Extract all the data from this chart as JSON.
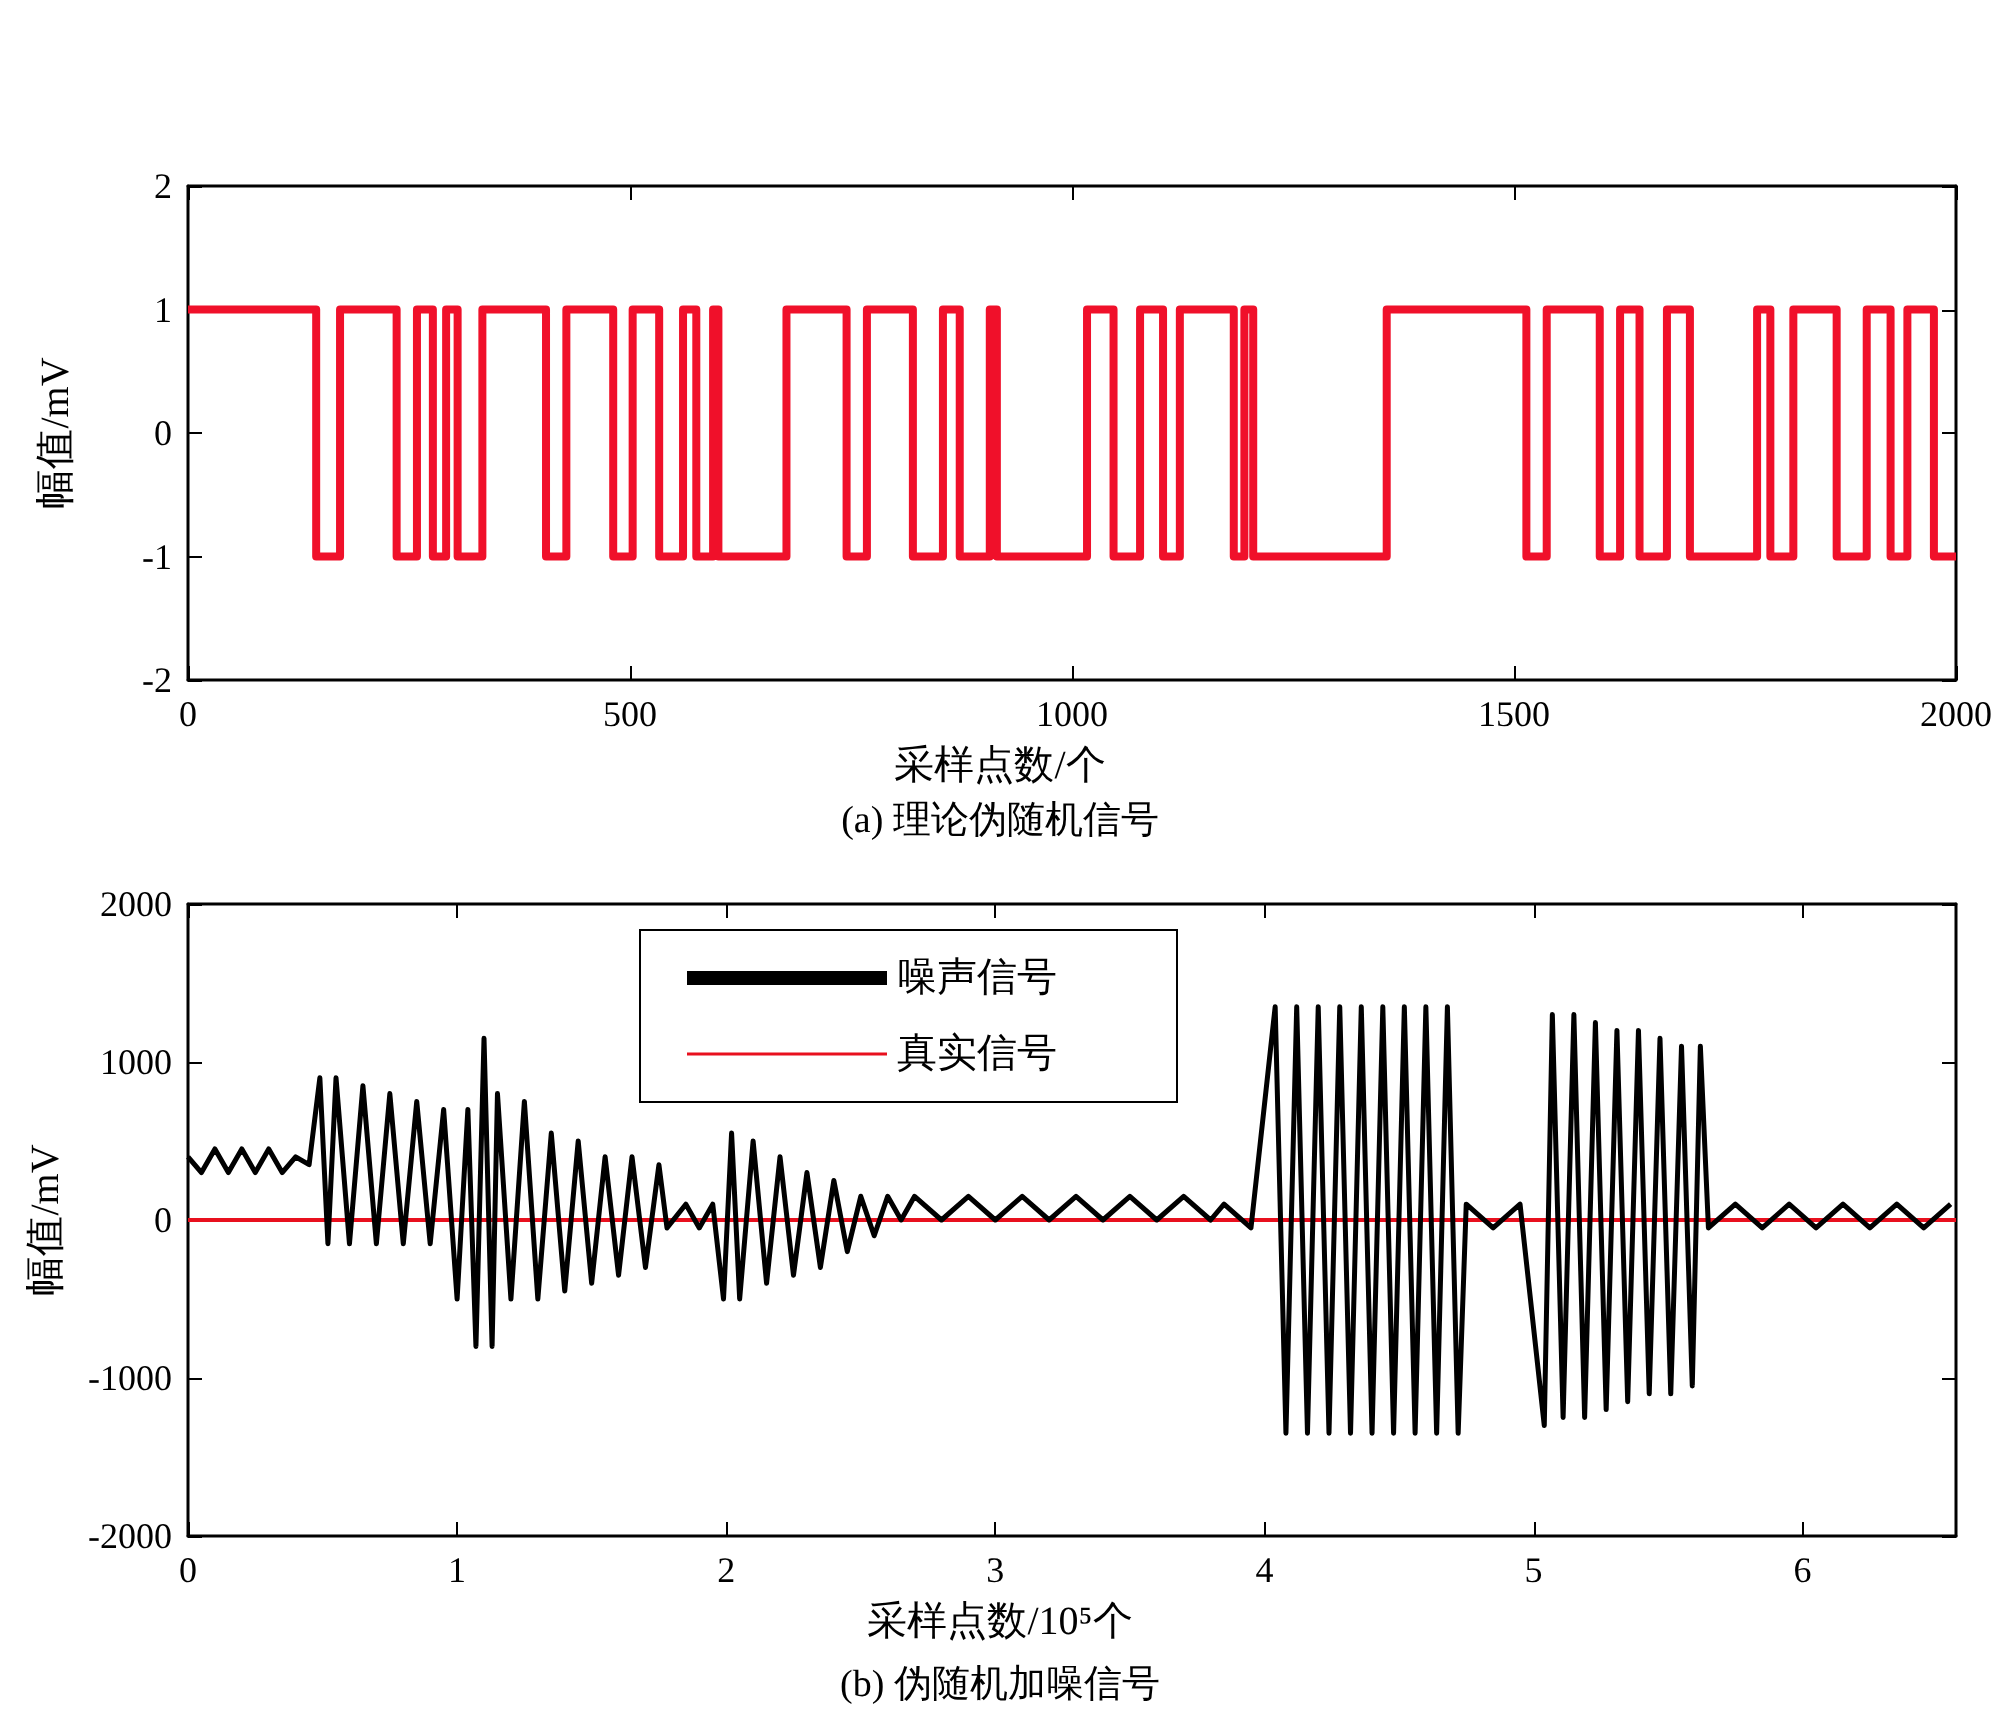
{
  "chart_data": [
    {
      "type": "step",
      "title": "(a) 理论伪随机信号",
      "xlabel": "采样点数/个",
      "ylabel": "幅值/mV",
      "x": [
        0,
        145,
        172,
        236,
        259,
        277,
        292,
        305,
        333,
        405,
        428,
        481,
        503,
        533,
        560,
        575,
        594,
        600,
        677,
        745,
        768,
        820,
        854,
        873,
        907,
        915,
        1017,
        1047,
        1077,
        1103,
        1122,
        1183,
        1195,
        1205,
        1356,
        1514,
        1537,
        1597,
        1620,
        1642,
        1673,
        1699,
        1775,
        1790,
        1816,
        1865,
        1899,
        1926,
        1945,
        1975,
        2000
      ],
      "series": [
        {
          "color": "#f0102a",
          "values": [
            1,
            -1,
            1,
            -1,
            1,
            -1,
            1,
            -1,
            1,
            -1,
            1,
            -1,
            1,
            -1,
            1,
            -1,
            1,
            -1,
            1,
            -1,
            1,
            -1,
            1,
            -1,
            1,
            -1,
            1,
            -1,
            1,
            -1,
            1,
            -1,
            1,
            -1,
            1,
            -1,
            1,
            -1,
            1,
            -1,
            1,
            -1,
            1,
            -1,
            1,
            -1,
            1,
            -1,
            1,
            -1,
            -1
          ]
        }
      ],
      "xlim": [
        0,
        2000
      ],
      "xticks": [
        0,
        500,
        1000,
        1500,
        2000
      ],
      "ylim": [
        -2,
        2
      ],
      "yticks": [
        -2,
        -1,
        0,
        1,
        2
      ],
      "grid": false,
      "legend": false,
      "marker": "none"
    },
    {
      "type": "line",
      "title": "(b) 伪随机加噪信号",
      "xlabel": "采样点数/10⁵个",
      "ylabel": "幅值/mV",
      "series": [
        {
          "name": "噪声信号",
          "color": "#000000",
          "x": [
            0,
            0.05,
            0.1,
            0.15,
            0.2,
            0.25,
            0.3,
            0.35,
            0.4,
            0.45,
            0.49,
            0.52,
            0.55,
            0.6,
            0.65,
            0.7,
            0.75,
            0.8,
            0.85,
            0.9,
            0.95,
            1.0,
            1.04,
            1.07,
            1.1,
            1.13,
            1.15,
            1.2,
            1.25,
            1.3,
            1.35,
            1.4,
            1.45,
            1.5,
            1.55,
            1.6,
            1.65,
            1.7,
            1.75,
            1.78,
            1.85,
            1.9,
            1.95,
            1.99,
            2.02,
            2.05,
            2.1,
            2.15,
            2.2,
            2.25,
            2.3,
            2.35,
            2.4,
            2.45,
            2.5,
            2.55,
            2.6,
            2.65,
            2.7,
            2.8,
            2.9,
            3.0,
            3.1,
            3.2,
            3.3,
            3.4,
            3.5,
            3.6,
            3.7,
            3.8,
            3.85,
            3.95,
            4.04,
            4.08,
            4.12,
            4.16,
            4.2,
            4.24,
            4.28,
            4.32,
            4.36,
            4.4,
            4.44,
            4.48,
            4.52,
            4.56,
            4.6,
            4.64,
            4.68,
            4.72,
            4.75,
            4.85,
            4.95,
            5.04,
            5.07,
            5.11,
            5.15,
            5.19,
            5.23,
            5.27,
            5.31,
            5.35,
            5.39,
            5.43,
            5.47,
            5.51,
            5.55,
            5.59,
            5.62,
            5.65,
            5.75,
            5.85,
            5.95,
            6.05,
            6.15,
            6.25,
            6.35,
            6.45,
            6.55
          ],
          "values": [
            400,
            300,
            450,
            300,
            450,
            300,
            450,
            300,
            400,
            350,
            900,
            -150,
            900,
            -150,
            850,
            -150,
            800,
            -150,
            750,
            -150,
            700,
            -500,
            700,
            -800,
            1150,
            -800,
            800,
            -500,
            750,
            -500,
            550,
            -450,
            500,
            -400,
            400,
            -350,
            400,
            -300,
            350,
            -50,
            100,
            -50,
            100,
            -500,
            550,
            -500,
            500,
            -400,
            400,
            -350,
            300,
            -300,
            250,
            -200,
            150,
            -100,
            150,
            0,
            150,
            0,
            150,
            0,
            150,
            0,
            150,
            0,
            150,
            0,
            150,
            0,
            100,
            -50,
            1350,
            -1350,
            1350,
            -1350,
            1350,
            -1350,
            1350,
            -1350,
            1350,
            -1350,
            1350,
            -1350,
            1350,
            -1350,
            1350,
            -1350,
            1350,
            -1350,
            100,
            -50,
            100,
            -1300,
            1300,
            -1250,
            1300,
            -1250,
            1250,
            -1200,
            1200,
            -1150,
            1200,
            -1100,
            1150,
            -1100,
            1100,
            -1050,
            1100,
            -50,
            100,
            -50,
            100,
            -50,
            100,
            -50,
            100,
            -50,
            100
          ]
        },
        {
          "name": "真实信号",
          "color": "#e8101e",
          "x": [
            0,
            6.57
          ],
          "values": [
            0,
            0
          ]
        }
      ],
      "xlim": [
        0,
        6.57
      ],
      "xticks": [
        0,
        1,
        2,
        3,
        4,
        5,
        6
      ],
      "ylim": [
        -2000,
        2000
      ],
      "yticks": [
        -2000,
        -1000,
        0,
        1000,
        2000
      ],
      "grid": false,
      "legend": "top",
      "marker": "none"
    }
  ]
}
